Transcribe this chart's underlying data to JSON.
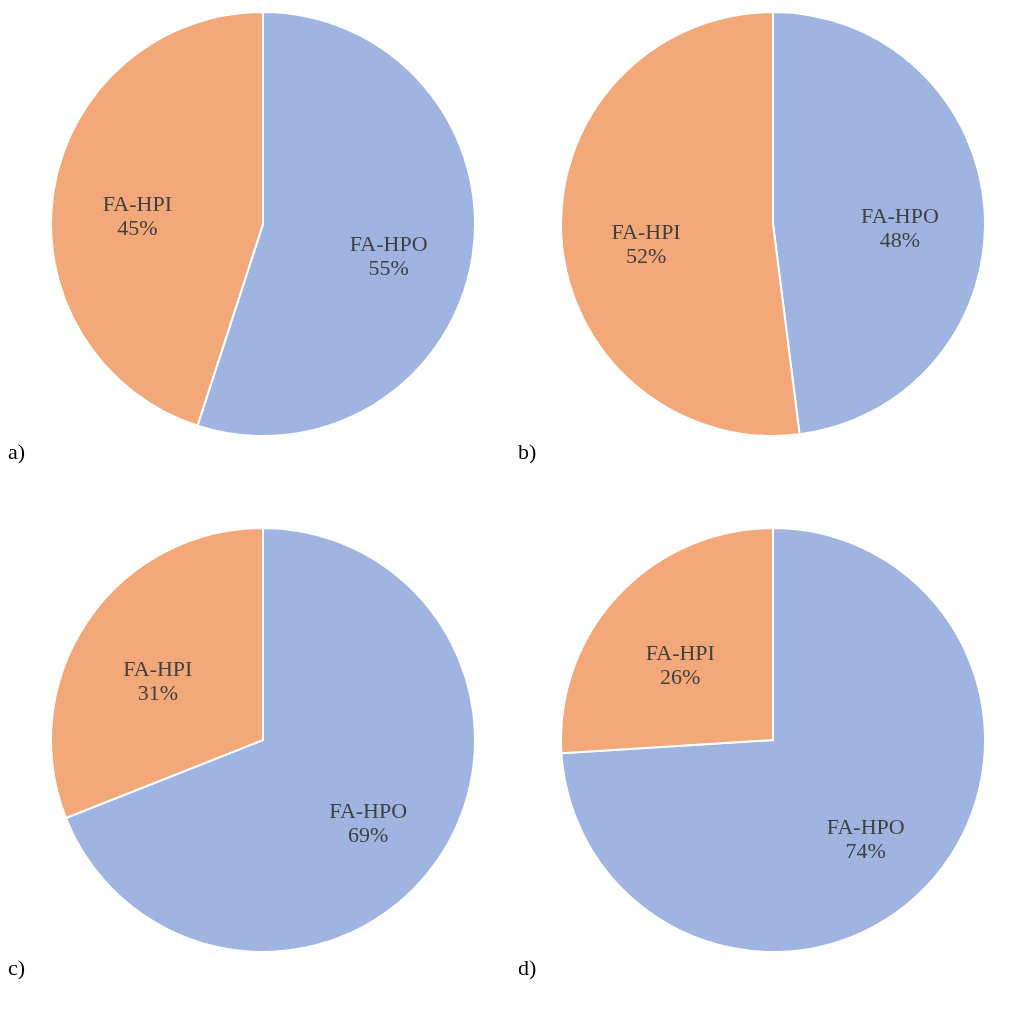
{
  "chart_data": [
    {
      "type": "pie",
      "categories": [
        "FA-HPO",
        "FA-HPI"
      ],
      "values": [
        55,
        45
      ],
      "colors": [
        "#9fb4e0",
        "#f2a878"
      ],
      "value_labels": [
        "55%",
        "45%"
      ],
      "annotations": [
        "a)"
      ]
    },
    {
      "type": "pie",
      "categories": [
        "FA-HPO",
        "FA-HPI"
      ],
      "values": [
        48,
        52
      ],
      "colors": [
        "#9fb4e0",
        "#f2a878"
      ],
      "value_labels": [
        "48%",
        "52%"
      ],
      "annotations": [
        "b)"
      ]
    },
    {
      "type": "pie",
      "categories": [
        "FA-HPO",
        "FA-HPI"
      ],
      "values": [
        69,
        31
      ],
      "colors": [
        "#9fb4e0",
        "#f2a878"
      ],
      "value_labels": [
        "69%",
        "31%"
      ],
      "annotations": [
        "c)"
      ]
    },
    {
      "type": "pie",
      "categories": [
        "FA-HPO",
        "FA-HPI"
      ],
      "values": [
        74,
        26
      ],
      "colors": [
        "#9fb4e0",
        "#f2a878"
      ],
      "value_labels": [
        "74%",
        "26%"
      ],
      "annotations": [
        "d)"
      ]
    }
  ]
}
